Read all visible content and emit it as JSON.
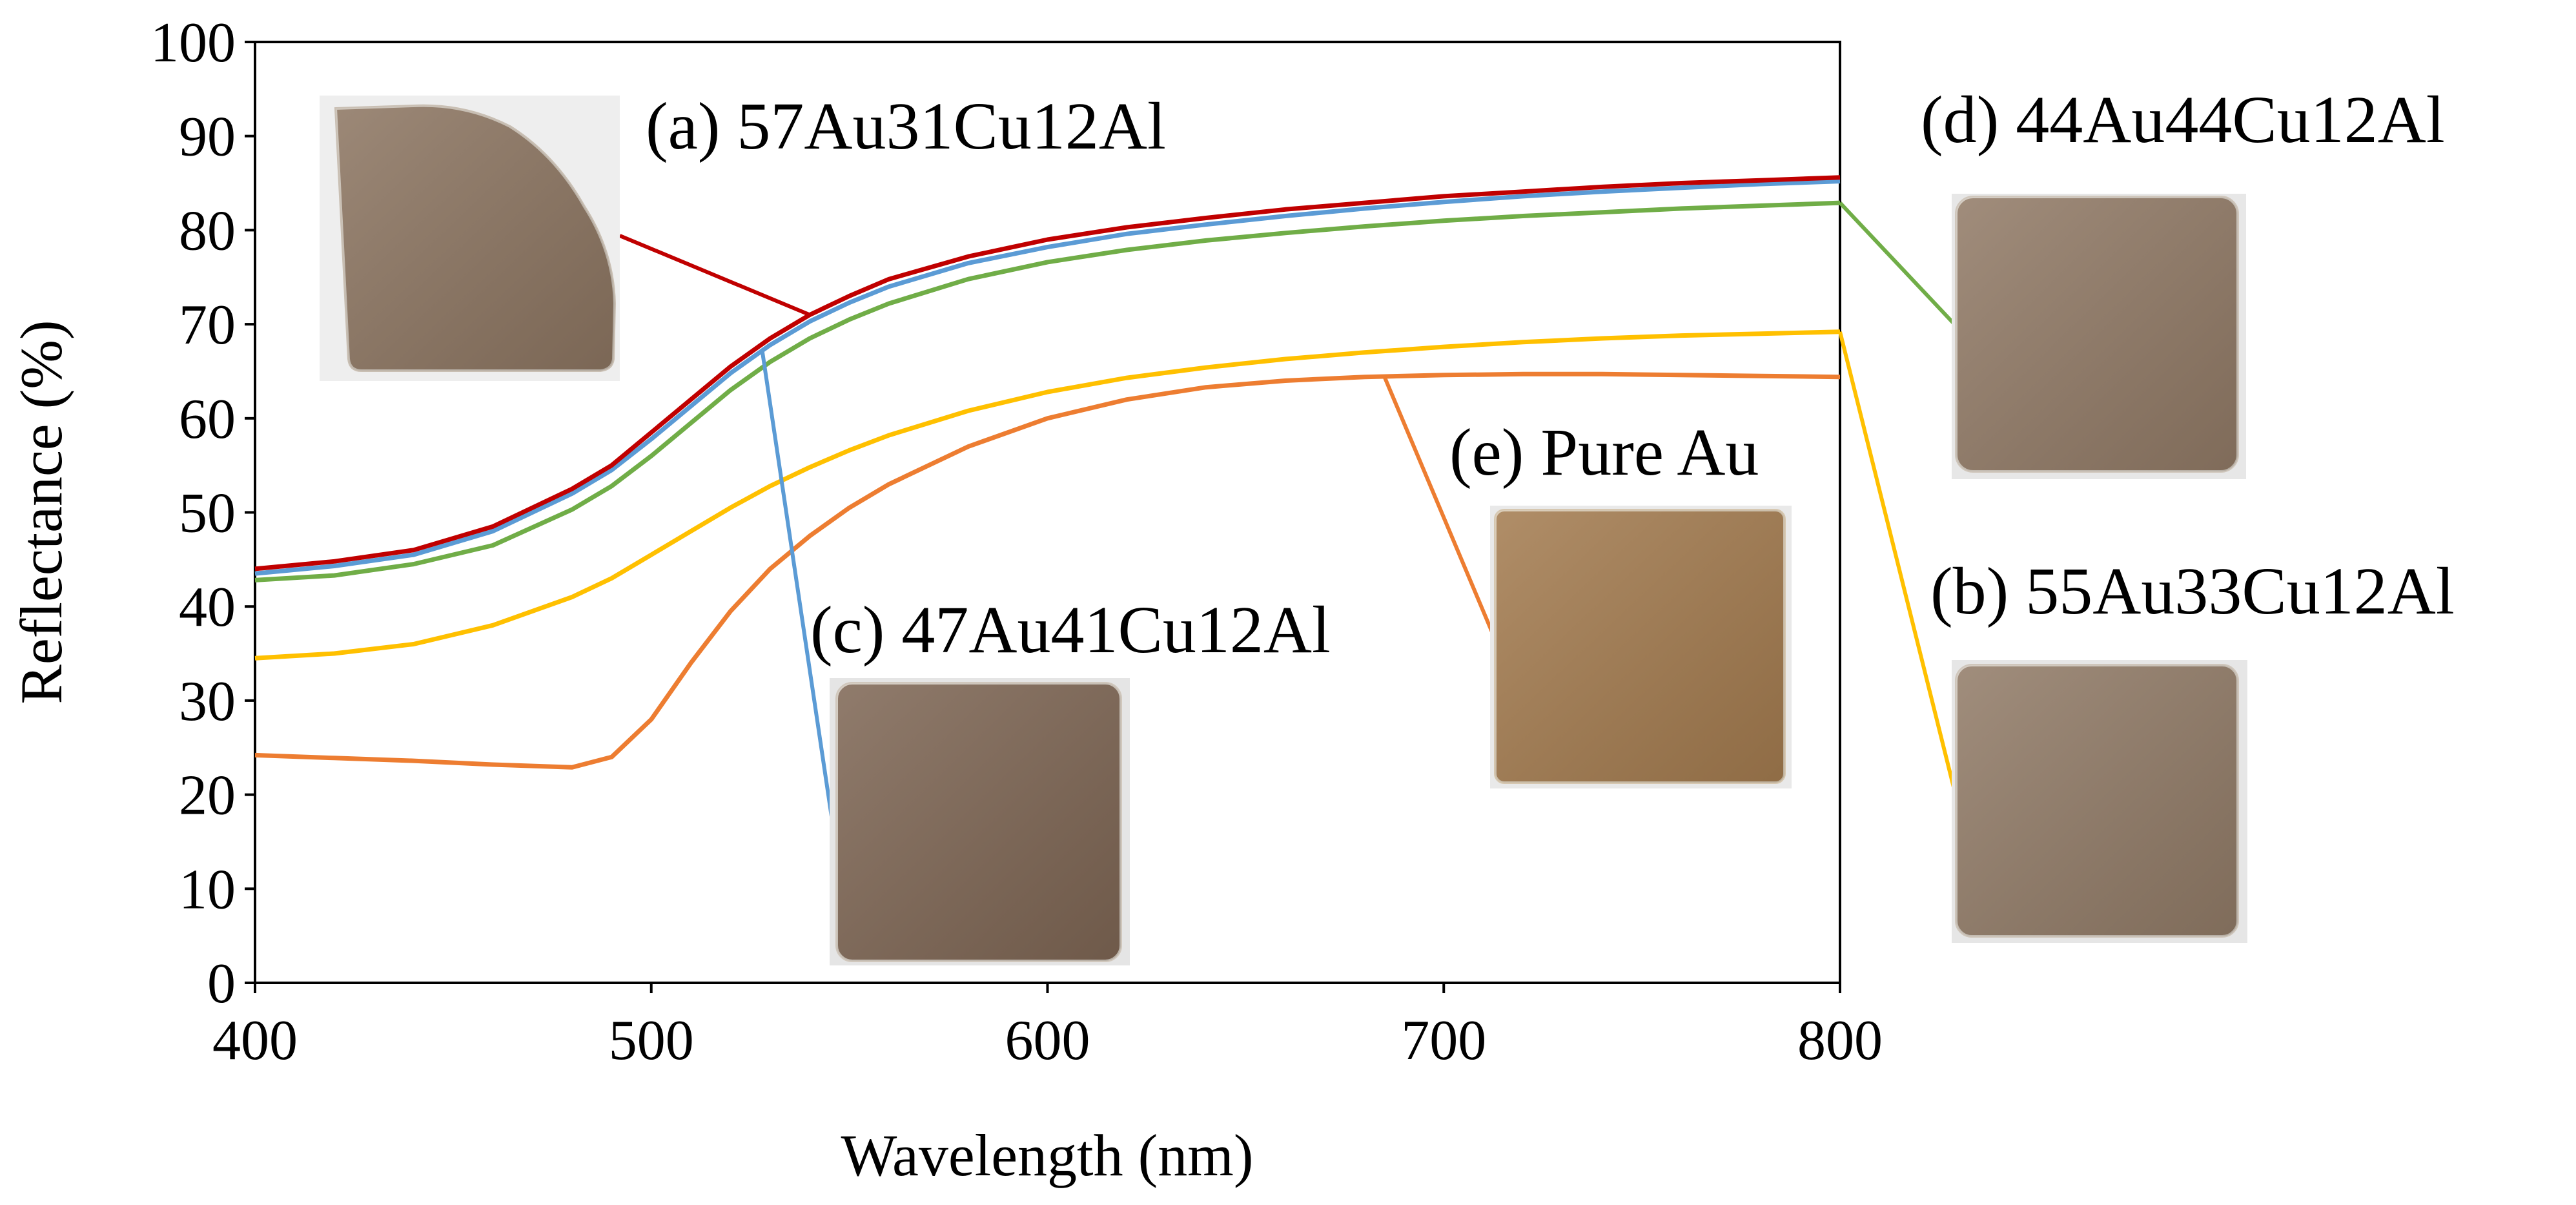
{
  "chart_data": {
    "type": "line",
    "xlabel": "Wavelength (nm)",
    "ylabel": "Reflectance (%)",
    "xlim": [
      400,
      800
    ],
    "ylim": [
      0,
      100
    ],
    "x_ticks": [
      400,
      500,
      600,
      700,
      800
    ],
    "x_tick_labels": [
      "400",
      "500",
      "600",
      "700",
      "800"
    ],
    "y_ticks": [
      0,
      10,
      20,
      30,
      40,
      50,
      60,
      70,
      80,
      90,
      100
    ],
    "y_tick_labels": [
      "0",
      "10",
      "20",
      "30",
      "40",
      "50",
      "60",
      "70",
      "80",
      "90",
      "100"
    ],
    "grid": false,
    "x": [
      400,
      420,
      440,
      460,
      480,
      490,
      500,
      510,
      520,
      530,
      540,
      550,
      560,
      580,
      600,
      620,
      640,
      660,
      680,
      700,
      720,
      740,
      760,
      780,
      800
    ],
    "series": [
      {
        "key": "a",
        "name": "(a) 57Au31Cu12Al",
        "color": "#c00000",
        "values": [
          44.0,
          44.8,
          46.0,
          48.5,
          52.5,
          55.0,
          58.5,
          62.0,
          65.5,
          68.5,
          71.0,
          73.0,
          74.8,
          77.2,
          79.0,
          80.3,
          81.3,
          82.2,
          82.9,
          83.6,
          84.1,
          84.6,
          85.0,
          85.3,
          85.6
        ]
      },
      {
        "key": "c",
        "name": "(c) 47Au41Cu12Al",
        "color": "#5b9bd5",
        "values": [
          43.5,
          44.3,
          45.5,
          48.0,
          52.0,
          54.5,
          57.8,
          61.3,
          64.8,
          67.8,
          70.3,
          72.3,
          74.0,
          76.5,
          78.2,
          79.6,
          80.6,
          81.5,
          82.3,
          83.0,
          83.6,
          84.1,
          84.5,
          84.9,
          85.2
        ]
      },
      {
        "key": "d",
        "name": "(d) 44Au44Cu12Al",
        "color": "#70ad47",
        "values": [
          42.8,
          43.3,
          44.5,
          46.5,
          50.3,
          52.8,
          56.0,
          59.5,
          63.0,
          66.0,
          68.5,
          70.5,
          72.2,
          74.8,
          76.6,
          77.9,
          78.9,
          79.7,
          80.4,
          81.0,
          81.5,
          81.9,
          82.3,
          82.6,
          82.9
        ]
      },
      {
        "key": "b",
        "name": "(b) 55Au33Cu12Al",
        "color": "#ffc000",
        "values": [
          34.5,
          35.0,
          36.0,
          38.0,
          41.0,
          43.0,
          45.5,
          48.0,
          50.5,
          52.8,
          54.8,
          56.6,
          58.2,
          60.8,
          62.8,
          64.3,
          65.4,
          66.3,
          67.0,
          67.6,
          68.1,
          68.5,
          68.8,
          69.0,
          69.2
        ]
      },
      {
        "key": "e",
        "name": "(e) Pure Au",
        "color": "#ed7d31",
        "values": [
          24.2,
          23.9,
          23.6,
          23.2,
          22.9,
          24.0,
          28.0,
          34.0,
          39.5,
          44.0,
          47.5,
          50.5,
          53.0,
          57.0,
          60.0,
          62.0,
          63.3,
          64.0,
          64.4,
          64.6,
          64.7,
          64.7,
          64.6,
          64.5,
          64.4
        ]
      }
    ],
    "annotations": [
      {
        "key": "a",
        "label": "(a) 57Au31Cu12Al",
        "leader_x": 540,
        "swatch": "#8c7561"
      },
      {
        "key": "d",
        "label": "(d) 44Au44Cu12Al",
        "leader_x": 800,
        "swatch": "#917a66"
      },
      {
        "key": "c",
        "label": "(c) 47Au41Cu12Al",
        "leader_x": 528,
        "swatch": "#7e6654"
      },
      {
        "key": "e",
        "label": "(e) Pure Au",
        "leader_x": 685,
        "swatch": "#a37b4f"
      },
      {
        "key": "b",
        "label": "(b) 55Au33Cu12Al",
        "leader_x": 800,
        "swatch": "#917b67"
      }
    ]
  }
}
